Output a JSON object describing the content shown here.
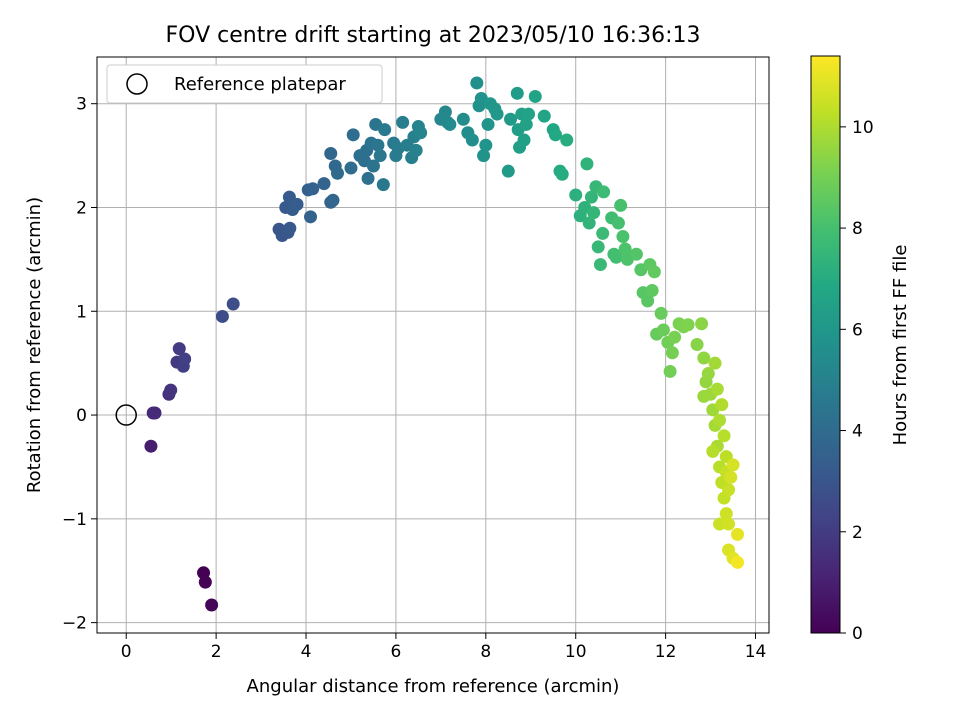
{
  "chart_data": {
    "type": "scatter",
    "title": "FOV centre drift starting at 2023/05/10 16:36:13",
    "xlabel": "Angular distance from reference (arcmin)",
    "ylabel": "Rotation from reference (arcmin)",
    "xlim": [
      -0.65,
      14.3
    ],
    "ylim": [
      -2.1,
      3.45
    ],
    "xticks": [
      0,
      2,
      4,
      6,
      8,
      10,
      12,
      14
    ],
    "yticks": [
      -2,
      -1,
      0,
      1,
      2,
      3
    ],
    "grid": true,
    "legend": {
      "placement": "top-left",
      "entries": [
        "Reference platepar"
      ]
    },
    "reference_point": {
      "x": 0,
      "y": 0
    },
    "colorbar": {
      "label": "Hours from first FF file",
      "colormap": "viridis",
      "range": [
        0,
        11.4
      ],
      "ticks": [
        0,
        2,
        4,
        6,
        8,
        10
      ]
    },
    "series": [
      {
        "points": [
          {
            "x": 1.72,
            "y": -1.52,
            "c": 0.0
          },
          {
            "x": 1.76,
            "y": -1.61,
            "c": 0.05
          },
          {
            "x": 1.9,
            "y": -1.83,
            "c": 0.1
          },
          {
            "x": 0.55,
            "y": -0.3,
            "c": 0.9
          },
          {
            "x": 0.6,
            "y": 0.02,
            "c": 1.3
          },
          {
            "x": 0.64,
            "y": 0.02,
            "c": 1.35
          },
          {
            "x": 0.95,
            "y": 0.2,
            "c": 1.6
          },
          {
            "x": 0.99,
            "y": 0.24,
            "c": 1.7
          },
          {
            "x": 1.13,
            "y": 0.51,
            "c": 1.9
          },
          {
            "x": 1.18,
            "y": 0.64,
            "c": 2.0
          },
          {
            "x": 1.27,
            "y": 0.47,
            "c": 2.05
          },
          {
            "x": 1.3,
            "y": 0.54,
            "c": 2.1
          },
          {
            "x": 2.14,
            "y": 0.95,
            "c": 2.6
          },
          {
            "x": 2.38,
            "y": 1.07,
            "c": 2.7
          },
          {
            "x": 3.4,
            "y": 1.79,
            "c": 3.0
          },
          {
            "x": 3.47,
            "y": 1.73,
            "c": 3.05
          },
          {
            "x": 3.6,
            "y": 1.76,
            "c": 3.1
          },
          {
            "x": 3.64,
            "y": 1.8,
            "c": 3.15
          },
          {
            "x": 3.55,
            "y": 2.0,
            "c": 3.2
          },
          {
            "x": 3.63,
            "y": 2.1,
            "c": 3.25
          },
          {
            "x": 3.7,
            "y": 1.98,
            "c": 3.3
          },
          {
            "x": 3.8,
            "y": 2.03,
            "c": 3.35
          },
          {
            "x": 4.05,
            "y": 2.17,
            "c": 3.45
          },
          {
            "x": 4.15,
            "y": 2.18,
            "c": 3.5
          },
          {
            "x": 4.1,
            "y": 1.91,
            "c": 3.55
          },
          {
            "x": 4.4,
            "y": 2.23,
            "c": 3.65
          },
          {
            "x": 4.55,
            "y": 2.05,
            "c": 3.7
          },
          {
            "x": 4.6,
            "y": 2.07,
            "c": 3.75
          },
          {
            "x": 4.55,
            "y": 2.52,
            "c": 3.8
          },
          {
            "x": 4.65,
            "y": 2.4,
            "c": 3.85
          },
          {
            "x": 4.7,
            "y": 2.33,
            "c": 3.9
          },
          {
            "x": 5.0,
            "y": 2.38,
            "c": 4.0
          },
          {
            "x": 5.05,
            "y": 2.7,
            "c": 4.05
          },
          {
            "x": 5.2,
            "y": 2.5,
            "c": 4.1
          },
          {
            "x": 5.3,
            "y": 2.45,
            "c": 4.15
          },
          {
            "x": 5.35,
            "y": 2.55,
            "c": 4.2
          },
          {
            "x": 5.38,
            "y": 2.28,
            "c": 4.25
          },
          {
            "x": 5.45,
            "y": 2.62,
            "c": 4.3
          },
          {
            "x": 5.5,
            "y": 2.4,
            "c": 4.35
          },
          {
            "x": 5.55,
            "y": 2.8,
            "c": 4.4
          },
          {
            "x": 5.6,
            "y": 2.6,
            "c": 4.45
          },
          {
            "x": 5.65,
            "y": 2.5,
            "c": 4.5
          },
          {
            "x": 5.72,
            "y": 2.22,
            "c": 4.55
          },
          {
            "x": 5.75,
            "y": 2.75,
            "c": 4.6
          },
          {
            "x": 5.95,
            "y": 2.62,
            "c": 4.65
          },
          {
            "x": 6.0,
            "y": 2.5,
            "c": 4.7
          },
          {
            "x": 6.05,
            "y": 2.57,
            "c": 4.75
          },
          {
            "x": 6.15,
            "y": 2.82,
            "c": 4.8
          },
          {
            "x": 6.25,
            "y": 2.6,
            "c": 4.85
          },
          {
            "x": 6.35,
            "y": 2.48,
            "c": 4.9
          },
          {
            "x": 6.4,
            "y": 2.68,
            "c": 4.95
          },
          {
            "x": 6.45,
            "y": 2.55,
            "c": 5.0
          },
          {
            "x": 6.5,
            "y": 2.78,
            "c": 5.05
          },
          {
            "x": 6.55,
            "y": 2.72,
            "c": 5.1
          },
          {
            "x": 7.0,
            "y": 2.85,
            "c": 5.25
          },
          {
            "x": 7.1,
            "y": 2.92,
            "c": 5.3
          },
          {
            "x": 7.15,
            "y": 2.82,
            "c": 5.35
          },
          {
            "x": 7.2,
            "y": 2.8,
            "c": 5.4
          },
          {
            "x": 7.5,
            "y": 2.85,
            "c": 5.5
          },
          {
            "x": 7.6,
            "y": 2.72,
            "c": 5.55
          },
          {
            "x": 7.7,
            "y": 2.65,
            "c": 5.6
          },
          {
            "x": 7.8,
            "y": 3.2,
            "c": 5.65
          },
          {
            "x": 7.85,
            "y": 2.98,
            "c": 5.7
          },
          {
            "x": 7.9,
            "y": 3.05,
            "c": 5.75
          },
          {
            "x": 7.95,
            "y": 2.5,
            "c": 5.8
          },
          {
            "x": 8.0,
            "y": 2.6,
            "c": 5.85
          },
          {
            "x": 8.05,
            "y": 2.8,
            "c": 5.9
          },
          {
            "x": 8.1,
            "y": 3.0,
            "c": 5.95
          },
          {
            "x": 8.2,
            "y": 2.95,
            "c": 6.0
          },
          {
            "x": 8.25,
            "y": 2.9,
            "c": 6.05
          },
          {
            "x": 8.5,
            "y": 2.35,
            "c": 6.15
          },
          {
            "x": 8.55,
            "y": 2.85,
            "c": 6.2
          },
          {
            "x": 8.7,
            "y": 3.1,
            "c": 6.25
          },
          {
            "x": 8.72,
            "y": 2.75,
            "c": 6.3
          },
          {
            "x": 8.75,
            "y": 2.58,
            "c": 6.35
          },
          {
            "x": 8.8,
            "y": 2.9,
            "c": 6.4
          },
          {
            "x": 8.85,
            "y": 2.65,
            "c": 6.45
          },
          {
            "x": 8.9,
            "y": 2.8,
            "c": 6.5
          },
          {
            "x": 8.95,
            "y": 2.9,
            "c": 6.55
          },
          {
            "x": 9.1,
            "y": 3.07,
            "c": 6.6
          },
          {
            "x": 9.3,
            "y": 2.88,
            "c": 6.7
          },
          {
            "x": 9.5,
            "y": 2.75,
            "c": 6.8
          },
          {
            "x": 9.55,
            "y": 2.7,
            "c": 6.85
          },
          {
            "x": 9.65,
            "y": 2.35,
            "c": 6.95
          },
          {
            "x": 9.7,
            "y": 2.32,
            "c": 7.0
          },
          {
            "x": 9.8,
            "y": 2.65,
            "c": 7.05
          },
          {
            "x": 10.0,
            "y": 2.12,
            "c": 7.2
          },
          {
            "x": 10.1,
            "y": 1.92,
            "c": 7.25
          },
          {
            "x": 10.2,
            "y": 2.0,
            "c": 7.3
          },
          {
            "x": 10.25,
            "y": 2.42,
            "c": 7.35
          },
          {
            "x": 10.3,
            "y": 1.85,
            "c": 7.4
          },
          {
            "x": 10.35,
            "y": 2.1,
            "c": 7.45
          },
          {
            "x": 10.4,
            "y": 1.95,
            "c": 7.5
          },
          {
            "x": 10.45,
            "y": 2.2,
            "c": 7.55
          },
          {
            "x": 10.5,
            "y": 1.62,
            "c": 7.6
          },
          {
            "x": 10.55,
            "y": 1.45,
            "c": 7.65
          },
          {
            "x": 10.6,
            "y": 1.75,
            "c": 7.7
          },
          {
            "x": 10.62,
            "y": 2.15,
            "c": 7.75
          },
          {
            "x": 10.8,
            "y": 1.9,
            "c": 7.85
          },
          {
            "x": 10.85,
            "y": 1.55,
            "c": 7.9
          },
          {
            "x": 10.9,
            "y": 1.52,
            "c": 7.95
          },
          {
            "x": 10.95,
            "y": 1.85,
            "c": 8.0
          },
          {
            "x": 11.0,
            "y": 2.02,
            "c": 8.05
          },
          {
            "x": 11.05,
            "y": 1.72,
            "c": 8.1
          },
          {
            "x": 11.1,
            "y": 1.6,
            "c": 8.15
          },
          {
            "x": 11.15,
            "y": 1.5,
            "c": 8.2
          },
          {
            "x": 11.35,
            "y": 1.55,
            "c": 8.3
          },
          {
            "x": 11.45,
            "y": 1.4,
            "c": 8.35
          },
          {
            "x": 11.5,
            "y": 1.18,
            "c": 8.4
          },
          {
            "x": 11.6,
            "y": 1.1,
            "c": 8.45
          },
          {
            "x": 11.65,
            "y": 1.45,
            "c": 8.5
          },
          {
            "x": 11.7,
            "y": 1.2,
            "c": 8.55
          },
          {
            "x": 11.75,
            "y": 1.38,
            "c": 8.6
          },
          {
            "x": 11.8,
            "y": 0.78,
            "c": 8.7
          },
          {
            "x": 11.9,
            "y": 0.98,
            "c": 8.75
          },
          {
            "x": 11.95,
            "y": 0.82,
            "c": 8.8
          },
          {
            "x": 12.05,
            "y": 0.7,
            "c": 8.9
          },
          {
            "x": 12.1,
            "y": 0.42,
            "c": 8.95
          },
          {
            "x": 12.15,
            "y": 0.6,
            "c": 9.0
          },
          {
            "x": 12.2,
            "y": 0.75,
            "c": 9.05
          },
          {
            "x": 12.3,
            "y": 0.88,
            "c": 9.1
          },
          {
            "x": 12.4,
            "y": 0.85,
            "c": 9.15
          },
          {
            "x": 12.5,
            "y": 0.87,
            "c": 9.2
          },
          {
            "x": 12.7,
            "y": 0.68,
            "c": 9.35
          },
          {
            "x": 12.8,
            "y": 0.88,
            "c": 9.4
          },
          {
            "x": 12.85,
            "y": 0.55,
            "c": 9.5
          },
          {
            "x": 12.9,
            "y": 0.32,
            "c": 9.55
          },
          {
            "x": 12.95,
            "y": 0.4,
            "c": 9.6
          },
          {
            "x": 12.85,
            "y": 0.18,
            "c": 9.65
          },
          {
            "x": 13.0,
            "y": 0.2,
            "c": 9.7
          },
          {
            "x": 13.05,
            "y": 0.05,
            "c": 9.75
          },
          {
            "x": 13.1,
            "y": 0.5,
            "c": 9.8
          },
          {
            "x": 13.1,
            "y": -0.1,
            "c": 9.85
          },
          {
            "x": 13.15,
            "y": 0.25,
            "c": 9.9
          },
          {
            "x": 13.15,
            "y": -0.3,
            "c": 9.95
          },
          {
            "x": 13.2,
            "y": -0.05,
            "c": 10.0
          },
          {
            "x": 13.25,
            "y": 0.1,
            "c": 10.05
          },
          {
            "x": 13.05,
            "y": -0.35,
            "c": 10.1
          },
          {
            "x": 13.3,
            "y": -0.2,
            "c": 10.15
          },
          {
            "x": 13.2,
            "y": -0.5,
            "c": 10.2
          },
          {
            "x": 13.35,
            "y": -0.4,
            "c": 10.25
          },
          {
            "x": 13.25,
            "y": -0.65,
            "c": 10.3
          },
          {
            "x": 13.3,
            "y": -0.8,
            "c": 10.35
          },
          {
            "x": 13.35,
            "y": -0.55,
            "c": 10.4
          },
          {
            "x": 13.4,
            "y": -0.72,
            "c": 10.45
          },
          {
            "x": 13.2,
            "y": -1.05,
            "c": 10.5
          },
          {
            "x": 13.35,
            "y": -0.95,
            "c": 10.55
          },
          {
            "x": 13.4,
            "y": -1.05,
            "c": 10.6
          },
          {
            "x": 13.45,
            "y": -0.6,
            "c": 10.65
          },
          {
            "x": 13.5,
            "y": -0.48,
            "c": 10.7
          },
          {
            "x": 13.4,
            "y": -1.3,
            "c": 10.8
          },
          {
            "x": 13.5,
            "y": -1.38,
            "c": 10.9
          },
          {
            "x": 13.6,
            "y": -1.15,
            "c": 11.0
          },
          {
            "x": 13.6,
            "y": -1.42,
            "c": 11.2
          }
        ]
      }
    ]
  }
}
